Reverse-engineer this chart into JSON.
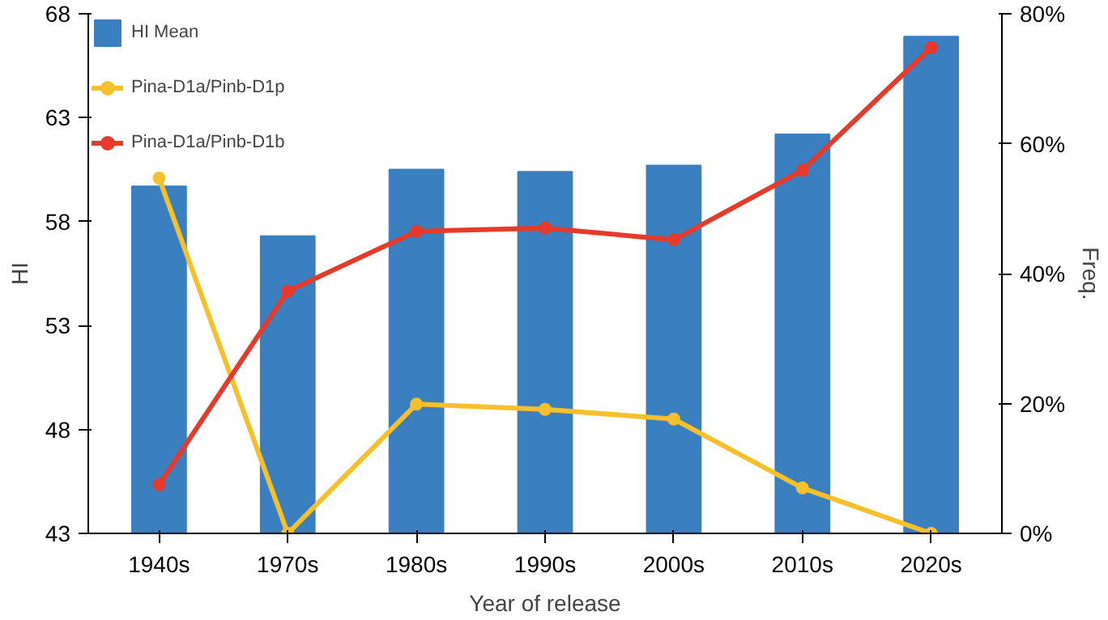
{
  "chart_data": {
    "type": "bar",
    "xlabel": "Year of release",
    "ylabel": "HI",
    "y2label": "Freq.",
    "categories": [
      "1940s",
      "1970s",
      "1980s",
      "1990s",
      "2000s",
      "2010s",
      "2020s"
    ],
    "series": [
      {
        "name": "HI Mean",
        "color": "#3a7fc0",
        "values": [
          59.7,
          57.3,
          60.5,
          60.4,
          60.7,
          62.2,
          66.9
        ]
      },
      {
        "name": "Pina-D1a/Pinb-D1p",
        "type": "line",
        "axis": "y2",
        "color": "#f5c02a",
        "values": [
          54.7,
          0,
          19.9,
          19.1,
          17.6,
          7.0,
          0
        ]
      },
      {
        "name": "Pina-D1a/Pinb-D1b",
        "type": "line",
        "axis": "y2",
        "color": "#e63a2a",
        "values": [
          7.5,
          37.3,
          46.5,
          47.0,
          45.2,
          55.9,
          74.8
        ]
      }
    ],
    "ylim": [
      43,
      68
    ],
    "yticks": [
      43,
      48,
      53,
      58,
      63,
      68
    ],
    "y2lim": [
      0,
      80
    ],
    "y2ticks": [
      {
        "value": 0,
        "label": "0%"
      },
      {
        "value": 20,
        "label": "20%"
      },
      {
        "value": 40,
        "label": "40%"
      },
      {
        "value": 60,
        "label": "60%"
      },
      {
        "value": 80,
        "label": "80%"
      }
    ],
    "marker": "circle",
    "grid": false,
    "legend": "top left"
  }
}
